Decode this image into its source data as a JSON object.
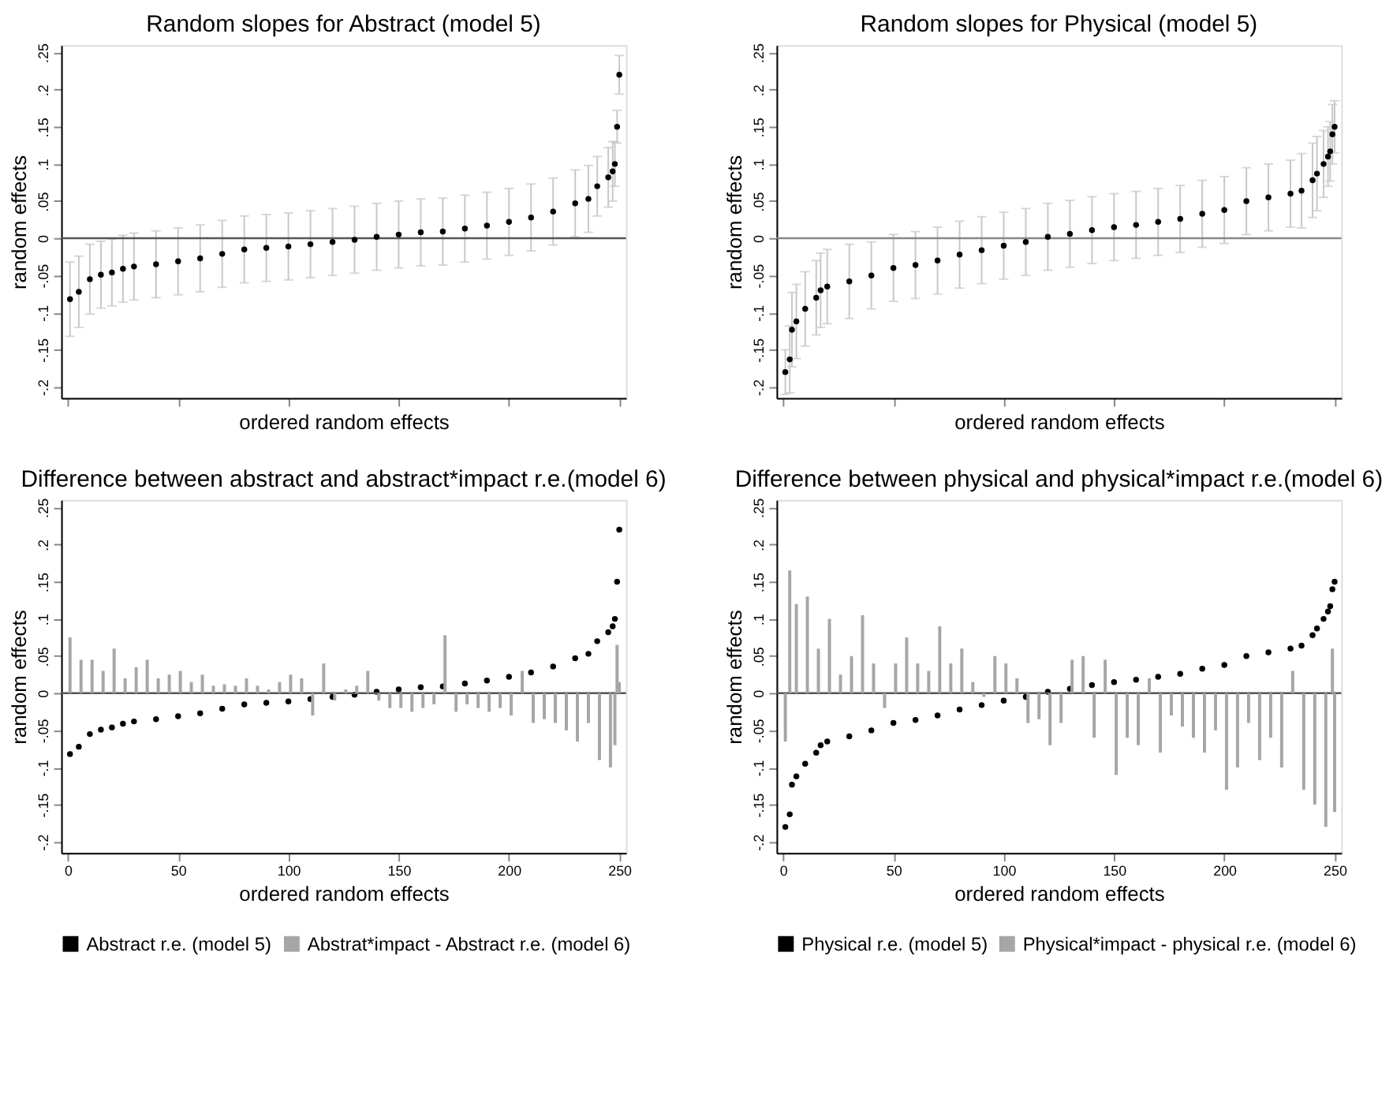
{
  "chart_data": [
    {
      "type": "scatter",
      "title": "Random slopes for Abstract (model 5)",
      "xlabel": "ordered random effects",
      "ylabel": "random effects",
      "xlim": [
        -3,
        253
      ],
      "xticks": [
        {
          "value": 0,
          "label": null
        },
        {
          "value": 50,
          "label": null
        },
        {
          "value": 100,
          "label": null
        },
        {
          "value": 150,
          "label": null
        },
        {
          "value": 200,
          "label": null
        },
        {
          "value": 250,
          "label": null
        }
      ],
      "ylim": [
        -0.215,
        0.26
      ],
      "yticks": [
        {
          "value": -0.2,
          "label": "-.2"
        },
        {
          "value": -0.15,
          "label": "-.15"
        },
        {
          "value": -0.1,
          "label": "-.1"
        },
        {
          "value": -0.05,
          "label": "-.05"
        },
        0,
        {
          "value": 0.05,
          "label": ".05"
        },
        {
          "value": 0.1,
          "label": ".1"
        },
        {
          "value": 0.15,
          "label": ".15"
        },
        {
          "value": 0.2,
          "label": ".2"
        },
        {
          "value": 0.25,
          "label": ".25"
        }
      ],
      "tick_labels": "y",
      "grid": false,
      "marker": "circle",
      "ref_lines": [
        {
          "axis": "y",
          "value": 0,
          "color": "#555555"
        }
      ],
      "series": [
        {
          "color": "#000000",
          "x": [
            1,
            5,
            10,
            15,
            20,
            25,
            30,
            40,
            50,
            60,
            70,
            80,
            90,
            100,
            110,
            120,
            130,
            140,
            150,
            160,
            170,
            180,
            190,
            200,
            210,
            220,
            230,
            236,
            240,
            245,
            247,
            248,
            249,
            250
          ],
          "values": [
            -0.082,
            -0.072,
            -0.055,
            -0.049,
            -0.046,
            -0.041,
            -0.038,
            -0.035,
            -0.031,
            -0.027,
            -0.021,
            -0.015,
            -0.013,
            -0.011,
            -0.008,
            -0.005,
            -0.002,
            0.002,
            0.005,
            0.008,
            0.009,
            0.013,
            0.017,
            0.022,
            0.028,
            0.036,
            0.047,
            0.053,
            0.07,
            0.082,
            0.09,
            0.1,
            0.15,
            0.22
          ],
          "errors": [
            0.05,
            0.048,
            0.047,
            0.045,
            0.045,
            0.045,
            0.045,
            0.045,
            0.045,
            0.045,
            0.045,
            0.045,
            0.045,
            0.045,
            0.045,
            0.045,
            0.045,
            0.045,
            0.045,
            0.045,
            0.045,
            0.045,
            0.045,
            0.045,
            0.045,
            0.045,
            0.045,
            0.045,
            0.04,
            0.04,
            0.04,
            0.03,
            0.022,
            0.026
          ]
        }
      ]
    },
    {
      "type": "scatter",
      "title": "Random slopes for Physical (model 5)",
      "xlabel": "ordered random effects",
      "ylabel": "random effects",
      "xlim": [
        -3,
        253
      ],
      "xticks": [
        {
          "value": 0,
          "label": null
        },
        {
          "value": 50,
          "label": null
        },
        {
          "value": 100,
          "label": null
        },
        {
          "value": 150,
          "label": null
        },
        {
          "value": 200,
          "label": null
        },
        {
          "value": 250,
          "label": null
        }
      ],
      "ylim": [
        -0.215,
        0.26
      ],
      "yticks": [
        {
          "value": -0.2,
          "label": "-.2"
        },
        {
          "value": -0.15,
          "label": "-.15"
        },
        {
          "value": -0.1,
          "label": "-.1"
        },
        {
          "value": -0.05,
          "label": "-.05"
        },
        0,
        {
          "value": 0.05,
          "label": ".05"
        },
        {
          "value": 0.1,
          "label": ".1"
        },
        {
          "value": 0.15,
          "label": ".15"
        },
        {
          "value": 0.2,
          "label": ".2"
        },
        {
          "value": 0.25,
          "label": ".25"
        }
      ],
      "tick_labels": "y",
      "grid": false,
      "marker": "circle",
      "ref_lines": [
        {
          "axis": "y",
          "value": 0,
          "color": "#888888"
        }
      ],
      "series": [
        {
          "color": "#000000",
          "x": [
            1,
            3,
            4,
            6,
            10,
            15,
            17,
            20,
            30,
            40,
            50,
            60,
            70,
            80,
            90,
            100,
            110,
            120,
            130,
            140,
            150,
            160,
            170,
            180,
            190,
            200,
            210,
            220,
            230,
            235,
            240,
            242,
            245,
            247,
            248,
            249,
            250
          ],
          "values": [
            -0.18,
            -0.163,
            -0.123,
            -0.112,
            -0.095,
            -0.08,
            -0.07,
            -0.065,
            -0.058,
            -0.05,
            -0.04,
            -0.036,
            -0.03,
            -0.022,
            -0.016,
            -0.01,
            -0.005,
            0.002,
            0.006,
            0.011,
            0.015,
            0.018,
            0.022,
            0.026,
            0.033,
            0.038,
            0.05,
            0.055,
            0.06,
            0.064,
            0.078,
            0.087,
            0.1,
            0.11,
            0.117,
            0.14,
            0.15
          ],
          "errors": [
            0.03,
            0.045,
            0.05,
            0.05,
            0.05,
            0.05,
            0.05,
            0.05,
            0.05,
            0.045,
            0.045,
            0.045,
            0.045,
            0.045,
            0.045,
            0.045,
            0.045,
            0.045,
            0.045,
            0.045,
            0.045,
            0.045,
            0.045,
            0.045,
            0.045,
            0.045,
            0.045,
            0.045,
            0.045,
            0.05,
            0.05,
            0.05,
            0.045,
            0.04,
            0.04,
            0.04,
            0.035
          ]
        }
      ]
    },
    {
      "type": "scatter",
      "title": "Difference between abstract and abstract*impact r.e.(model 6)",
      "xlabel": "ordered random effects",
      "ylabel": "random effects",
      "xlim": [
        -3,
        253
      ],
      "xticks": [
        0,
        50,
        100,
        150,
        200,
        250
      ],
      "ylim": [
        -0.215,
        0.26
      ],
      "yticks": [
        {
          "value": -0.2,
          "label": "-.2"
        },
        {
          "value": -0.15,
          "label": "-.15"
        },
        {
          "value": -0.1,
          "label": "-.1"
        },
        {
          "value": -0.05,
          "label": "-.05"
        },
        0,
        {
          "value": 0.05,
          "label": ".05"
        },
        {
          "value": 0.1,
          "label": ".1"
        },
        {
          "value": 0.15,
          "label": ".15"
        },
        {
          "value": 0.2,
          "label": ".2"
        },
        {
          "value": 0.25,
          "label": ".25"
        }
      ],
      "grid": false,
      "marker": "circle",
      "legend": "bottom",
      "ref_lines": [
        {
          "axis": "y",
          "value": 0,
          "color": "#555555"
        }
      ],
      "series": [
        {
          "name": "Abstract r.e. (model 5)",
          "color": "#000000",
          "x": [
            1,
            5,
            10,
            15,
            20,
            25,
            30,
            40,
            50,
            60,
            70,
            80,
            90,
            100,
            110,
            120,
            130,
            140,
            150,
            160,
            170,
            180,
            190,
            200,
            210,
            220,
            230,
            236,
            240,
            245,
            247,
            248,
            249,
            250
          ],
          "values": [
            -0.082,
            -0.072,
            -0.055,
            -0.049,
            -0.046,
            -0.041,
            -0.038,
            -0.035,
            -0.031,
            -0.027,
            -0.021,
            -0.015,
            -0.013,
            -0.011,
            -0.008,
            -0.005,
            -0.002,
            0.002,
            0.005,
            0.008,
            0.009,
            0.013,
            0.017,
            0.022,
            0.028,
            0.036,
            0.047,
            0.053,
            0.07,
            0.082,
            0.09,
            0.1,
            0.15,
            0.22
          ]
        },
        {
          "name": "Abstrat*impact - Abstract r.e. (model 6)",
          "type": "bar",
          "color": "#a6a6a6",
          "x": [
            1,
            6,
            11,
            16,
            21,
            26,
            31,
            36,
            41,
            46,
            51,
            56,
            61,
            66,
            71,
            76,
            81,
            86,
            91,
            96,
            101,
            106,
            111,
            116,
            121,
            126,
            131,
            136,
            141,
            146,
            151,
            156,
            161,
            166,
            171,
            176,
            181,
            186,
            191,
            196,
            201,
            206,
            211,
            216,
            221,
            226,
            231,
            236,
            241,
            246,
            248,
            249,
            250
          ],
          "values": [
            0.075,
            0.045,
            0.045,
            0.03,
            0.06,
            0.02,
            0.035,
            0.045,
            0.02,
            0.025,
            0.03,
            0.015,
            0.025,
            0.01,
            0.012,
            0.01,
            0.02,
            0.01,
            0.005,
            0.015,
            0.025,
            0.02,
            -0.03,
            0.04,
            -0.01,
            0.005,
            0.01,
            0.03,
            -0.01,
            -0.02,
            -0.02,
            -0.025,
            -0.02,
            -0.015,
            0.078,
            -0.025,
            -0.015,
            -0.02,
            -0.025,
            -0.02,
            -0.03,
            0.03,
            -0.04,
            -0.035,
            -0.04,
            -0.05,
            -0.065,
            -0.04,
            -0.09,
            -0.1,
            -0.07,
            0.065,
            0.015
          ]
        }
      ]
    },
    {
      "type": "scatter",
      "title": "Difference between physical and physical*impact r.e.(model 6)",
      "xlabel": "ordered random effects",
      "ylabel": "random effects",
      "xlim": [
        -3,
        253
      ],
      "xticks": [
        0,
        50,
        100,
        150,
        200,
        250
      ],
      "ylim": [
        -0.215,
        0.26
      ],
      "yticks": [
        {
          "value": -0.2,
          "label": "-.2"
        },
        {
          "value": -0.15,
          "label": "-.15"
        },
        {
          "value": -0.1,
          "label": "-.1"
        },
        {
          "value": -0.05,
          "label": "-.05"
        },
        0,
        {
          "value": 0.05,
          "label": ".05"
        },
        {
          "value": 0.1,
          "label": ".1"
        },
        {
          "value": 0.15,
          "label": ".15"
        },
        {
          "value": 0.2,
          "label": ".2"
        },
        {
          "value": 0.25,
          "label": ".25"
        }
      ],
      "grid": false,
      "marker": "circle",
      "legend": "bottom",
      "ref_lines": [
        {
          "axis": "y",
          "value": 0,
          "color": "#555555"
        }
      ],
      "series": [
        {
          "name": "Physical r.e. (model 5)",
          "color": "#000000",
          "x": [
            1,
            3,
            4,
            6,
            10,
            15,
            17,
            20,
            30,
            40,
            50,
            60,
            70,
            80,
            90,
            100,
            110,
            120,
            130,
            140,
            150,
            160,
            170,
            180,
            190,
            200,
            210,
            220,
            230,
            235,
            240,
            242,
            245,
            247,
            248,
            249,
            250
          ],
          "values": [
            -0.18,
            -0.163,
            -0.123,
            -0.112,
            -0.095,
            -0.08,
            -0.07,
            -0.065,
            -0.058,
            -0.05,
            -0.04,
            -0.036,
            -0.03,
            -0.022,
            -0.016,
            -0.01,
            -0.005,
            0.002,
            0.006,
            0.011,
            0.015,
            0.018,
            0.022,
            0.026,
            0.033,
            0.038,
            0.05,
            0.055,
            0.06,
            0.064,
            0.078,
            0.087,
            0.1,
            0.11,
            0.117,
            0.14,
            0.15
          ]
        },
        {
          "name": "Physical*impact - physical r.e. (model 6)",
          "type": "bar",
          "color": "#a6a6a6",
          "x": [
            1,
            3,
            6,
            11,
            16,
            21,
            26,
            31,
            36,
            41,
            46,
            51,
            56,
            61,
            66,
            71,
            76,
            81,
            86,
            91,
            96,
            101,
            106,
            111,
            116,
            121,
            126,
            131,
            136,
            141,
            146,
            151,
            156,
            161,
            166,
            171,
            176,
            181,
            186,
            191,
            196,
            201,
            206,
            211,
            216,
            221,
            226,
            231,
            236,
            241,
            246,
            249,
            250
          ],
          "values": [
            -0.065,
            0.165,
            0.12,
            0.13,
            0.06,
            0.1,
            0.025,
            0.05,
            0.105,
            0.04,
            -0.02,
            0.04,
            0.075,
            0.04,
            0.03,
            0.09,
            0.04,
            0.06,
            0.015,
            -0.005,
            0.05,
            0.04,
            0.02,
            -0.04,
            -0.035,
            -0.07,
            -0.04,
            0.045,
            0.05,
            -0.06,
            0.045,
            -0.11,
            -0.06,
            -0.07,
            0.02,
            -0.08,
            -0.03,
            -0.045,
            -0.06,
            -0.08,
            -0.05,
            -0.13,
            -0.1,
            -0.04,
            -0.09,
            -0.06,
            -0.1,
            0.03,
            -0.13,
            -0.15,
            -0.18,
            0.06,
            -0.16
          ]
        }
      ]
    }
  ]
}
